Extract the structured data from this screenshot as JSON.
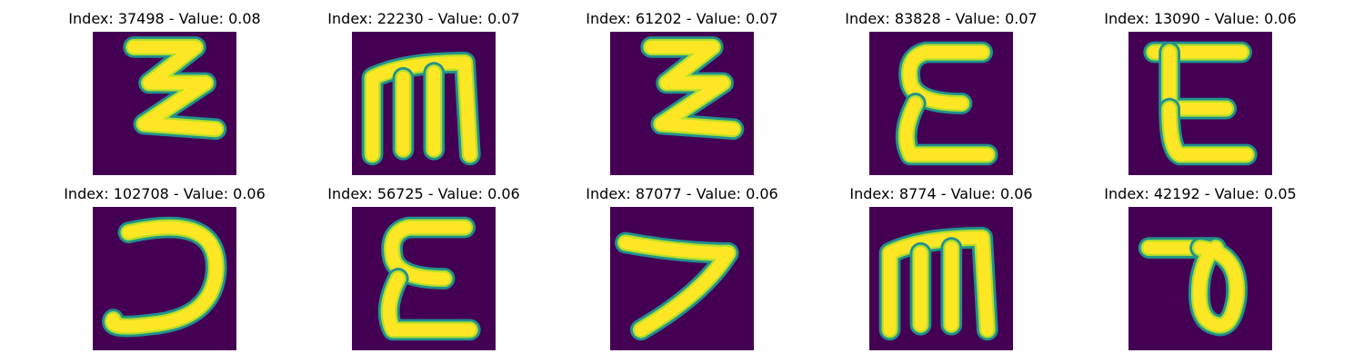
{
  "colors": {
    "background": "#440154",
    "stroke_core": "#fde725",
    "stroke_mid": "#b5de2b",
    "stroke_edge": "#21918c"
  },
  "panels": [
    {
      "index": "37498",
      "value": "0.08",
      "title": "Index: 37498 - Value: 0.08",
      "glyph": "zigzag-z-icon"
    },
    {
      "index": "22230",
      "value": "0.07",
      "title": "Index: 22230 - Value: 0.07",
      "glyph": "letter-m-icon"
    },
    {
      "index": "61202",
      "value": "0.07",
      "title": "Index: 61202 - Value: 0.07",
      "glyph": "zigzag-z-icon"
    },
    {
      "index": "83828",
      "value": "0.07",
      "title": "Index: 83828 - Value: 0.07",
      "glyph": "epsilon-icon"
    },
    {
      "index": "13090",
      "value": "0.06",
      "title": "Index: 13090 - Value: 0.06",
      "glyph": "letter-e-icon"
    },
    {
      "index": "102708",
      "value": "0.06",
      "title": "Index: 102708 - Value: 0.06",
      "glyph": "reversed-c-icon"
    },
    {
      "index": "56725",
      "value": "0.06",
      "title": "Index: 56725 - Value: 0.06",
      "glyph": "epsilon-icon"
    },
    {
      "index": "87077",
      "value": "0.06",
      "title": "Index: 87077 - Value: 0.06",
      "glyph": "seven-stroke-icon"
    },
    {
      "index": "8774",
      "value": "0.06",
      "title": "Index: 8774 - Value: 0.06",
      "glyph": "letter-m-icon"
    },
    {
      "index": "42192",
      "value": "0.05",
      "title": "Index: 42192 - Value: 0.05",
      "glyph": "loop-d-icon"
    }
  ]
}
